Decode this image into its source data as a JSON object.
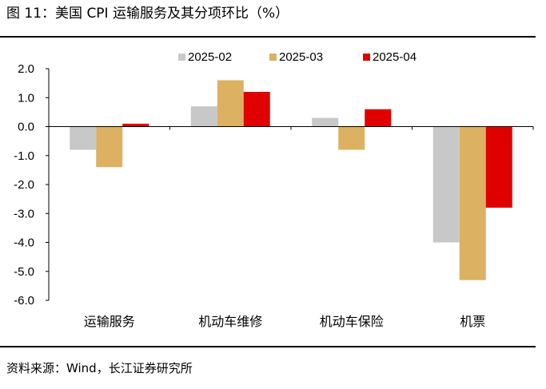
{
  "figure": {
    "title": "图 11：美国 CPI 运输服务及其分项环比（%）",
    "source": "资料来源：Wind，长江证券研究所"
  },
  "chart_data": {
    "type": "bar",
    "title": "美国 CPI 运输服务及其分项环比（%）",
    "categories": [
      "运输服务",
      "机动车维修",
      "机动车保险",
      "机票"
    ],
    "series": [
      {
        "name": "2025-02",
        "color": "#c8c8c8",
        "values": [
          -0.8,
          0.7,
          0.3,
          -4.0
        ]
      },
      {
        "name": "2025-03",
        "color": "#dcb162",
        "values": [
          -1.4,
          1.6,
          -0.8,
          -5.3
        ]
      },
      {
        "name": "2025-04",
        "color": "#e00000",
        "values": [
          0.1,
          1.2,
          0.6,
          -2.8
        ]
      }
    ],
    "ylim": [
      -6.0,
      2.0
    ],
    "yticks": [
      "2.0",
      "1.0",
      "0.0",
      "-1.0",
      "-2.0",
      "-3.0",
      "-4.0",
      "-5.0",
      "-6.0"
    ],
    "xlabel": "",
    "ylabel": "",
    "legend_position": "top"
  }
}
